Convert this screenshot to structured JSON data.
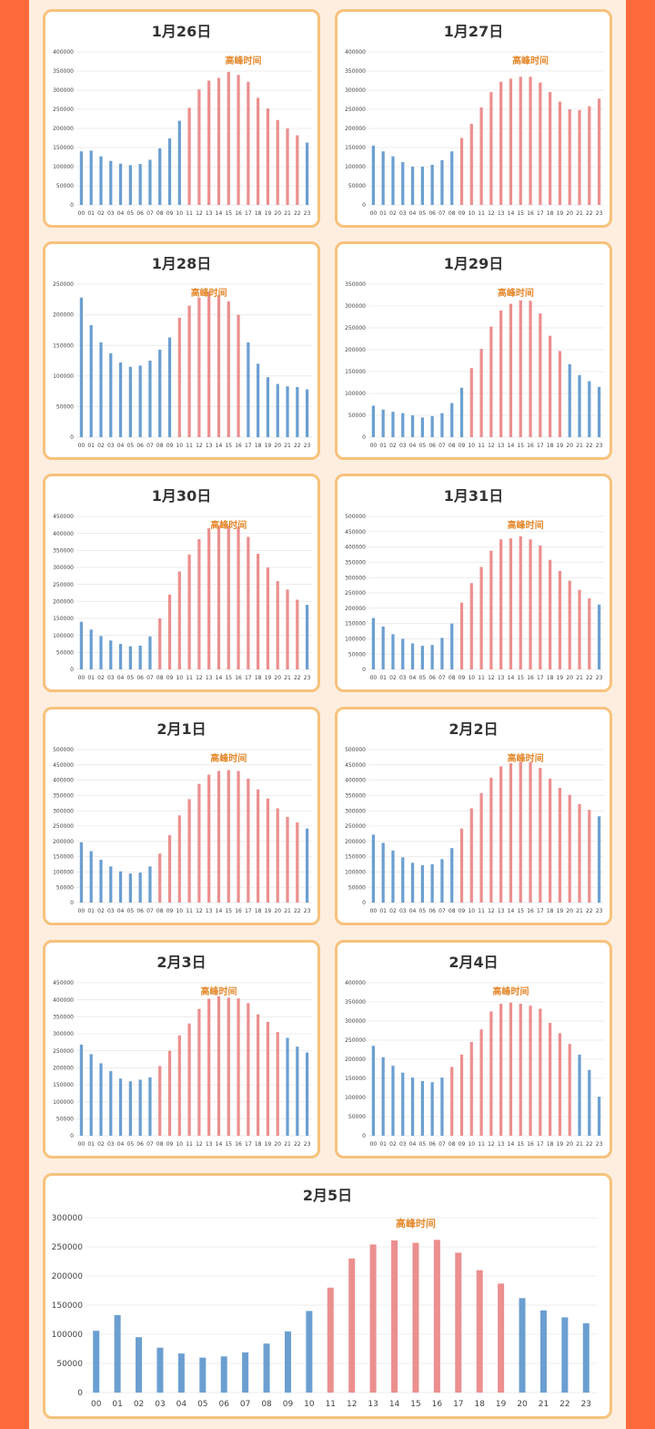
{
  "colors": {
    "background": "#ff6a3d",
    "panel": "#fdeee0",
    "card_border": "#f7c27c",
    "off_peak_bar": "#6b9fd1",
    "peak_bar": "#ec8f8f",
    "peak_label": "#e5892d",
    "title": "#333333",
    "axis_text": "#444444",
    "grid": "#ececec"
  },
  "peak_label": "高峰时间",
  "hours": [
    "00",
    "01",
    "02",
    "03",
    "04",
    "05",
    "06",
    "07",
    "08",
    "09",
    "10",
    "11",
    "12",
    "13",
    "14",
    "15",
    "16",
    "17",
    "18",
    "19",
    "20",
    "21",
    "22",
    "23"
  ],
  "chart_data": [
    {
      "type": "bar",
      "title": "1月26日",
      "ylim": [
        0,
        400000
      ],
      "yticks": [
        0,
        50000,
        100000,
        150000,
        200000,
        250000,
        300000,
        350000,
        400000
      ],
      "values": [
        140000,
        142000,
        127000,
        115000,
        108000,
        104000,
        107000,
        118000,
        148000,
        174000,
        220000,
        254000,
        302000,
        325000,
        332000,
        348000,
        340000,
        322000,
        280000,
        252000,
        222000,
        200000,
        182000,
        163000
      ],
      "peak": [
        11,
        22
      ]
    },
    {
      "type": "bar",
      "title": "1月27日",
      "ylim": [
        0,
        400000
      ],
      "yticks": [
        0,
        50000,
        100000,
        150000,
        200000,
        250000,
        300000,
        350000,
        400000
      ],
      "values": [
        155000,
        140000,
        127000,
        112000,
        100000,
        100000,
        105000,
        117000,
        140000,
        175000,
        212000,
        255000,
        295000,
        322000,
        330000,
        335000,
        335000,
        320000,
        295000,
        270000,
        250000,
        248000,
        258000,
        278000
      ],
      "peak": [
        9,
        23
      ]
    },
    {
      "type": "bar",
      "title": "1月28日",
      "ylim": [
        0,
        250000
      ],
      "yticks": [
        0,
        50000,
        100000,
        150000,
        200000,
        250000
      ],
      "values": [
        228000,
        183000,
        155000,
        137000,
        122000,
        115000,
        117000,
        125000,
        143000,
        163000,
        195000,
        215000,
        228000,
        238000,
        232000,
        222000,
        200000,
        155000,
        120000,
        98000,
        87000,
        83000,
        82000,
        78000
      ],
      "peak": [
        10,
        16
      ]
    },
    {
      "type": "bar",
      "title": "1月29日",
      "ylim": [
        0,
        350000
      ],
      "yticks": [
        0,
        50000,
        100000,
        150000,
        200000,
        250000,
        300000,
        350000
      ],
      "values": [
        72000,
        63000,
        58000,
        55000,
        50000,
        45000,
        48000,
        55000,
        78000,
        113000,
        158000,
        202000,
        253000,
        290000,
        305000,
        313000,
        312000,
        283000,
        232000,
        197000,
        167000,
        142000,
        128000,
        115000
      ],
      "peak": [
        10,
        19
      ]
    },
    {
      "type": "bar",
      "title": "1月30日",
      "ylim": [
        0,
        450000
      ],
      "yticks": [
        0,
        50000,
        100000,
        150000,
        200000,
        250000,
        300000,
        350000,
        400000,
        450000
      ],
      "values": [
        140000,
        117000,
        98000,
        85000,
        75000,
        68000,
        70000,
        97000,
        150000,
        220000,
        288000,
        338000,
        383000,
        415000,
        422000,
        423000,
        420000,
        390000,
        340000,
        300000,
        260000,
        235000,
        205000,
        190000
      ],
      "peak": [
        8,
        22
      ]
    },
    {
      "type": "bar",
      "title": "1月31日",
      "ylim": [
        0,
        500000
      ],
      "yticks": [
        0,
        50000,
        100000,
        150000,
        200000,
        250000,
        300000,
        350000,
        400000,
        450000,
        500000
      ],
      "values": [
        168000,
        140000,
        115000,
        100000,
        85000,
        77000,
        80000,
        103000,
        150000,
        218000,
        282000,
        335000,
        388000,
        425000,
        428000,
        435000,
        425000,
        405000,
        358000,
        322000,
        290000,
        260000,
        232000,
        212000
      ],
      "peak": [
        9,
        22
      ]
    },
    {
      "type": "bar",
      "title": "2月1日",
      "ylim": [
        0,
        500000
      ],
      "yticks": [
        0,
        50000,
        100000,
        150000,
        200000,
        250000,
        300000,
        350000,
        400000,
        450000,
        500000
      ],
      "values": [
        197000,
        168000,
        140000,
        118000,
        102000,
        95000,
        98000,
        118000,
        160000,
        220000,
        285000,
        338000,
        388000,
        418000,
        430000,
        433000,
        430000,
        405000,
        370000,
        340000,
        308000,
        280000,
        262000,
        242000
      ],
      "peak": [
        8,
        22
      ]
    },
    {
      "type": "bar",
      "title": "2月2日",
      "ylim": [
        0,
        500000
      ],
      "yticks": [
        0,
        50000,
        100000,
        150000,
        200000,
        250000,
        300000,
        350000,
        400000,
        450000,
        500000
      ],
      "values": [
        222000,
        195000,
        170000,
        148000,
        130000,
        122000,
        125000,
        142000,
        178000,
        242000,
        308000,
        358000,
        408000,
        445000,
        455000,
        460000,
        458000,
        440000,
        405000,
        375000,
        352000,
        322000,
        303000,
        282000
      ],
      "peak": [
        9,
        22
      ]
    },
    {
      "type": "bar",
      "title": "2月3日",
      "ylim": [
        0,
        450000
      ],
      "yticks": [
        0,
        50000,
        100000,
        150000,
        200000,
        250000,
        300000,
        350000,
        400000,
        450000
      ],
      "values": [
        268000,
        240000,
        213000,
        190000,
        168000,
        160000,
        165000,
        172000,
        205000,
        250000,
        295000,
        330000,
        373000,
        403000,
        410000,
        406000,
        404000,
        390000,
        357000,
        335000,
        305000,
        288000,
        262000,
        245000
      ],
      "peak": [
        8,
        20
      ]
    },
    {
      "type": "bar",
      "title": "2月4日",
      "ylim": [
        0,
        400000
      ],
      "yticks": [
        0,
        50000,
        100000,
        150000,
        200000,
        250000,
        300000,
        350000,
        400000
      ],
      "values": [
        235000,
        205000,
        183000,
        165000,
        152000,
        143000,
        140000,
        152000,
        180000,
        212000,
        245000,
        278000,
        325000,
        345000,
        348000,
        345000,
        340000,
        332000,
        295000,
        268000,
        240000,
        212000,
        172000,
        102000
      ],
      "peak": [
        8,
        20
      ]
    },
    {
      "type": "bar",
      "title": "2月5日",
      "ylim": [
        0,
        300000
      ],
      "yticks": [
        0,
        50000,
        100000,
        150000,
        200000,
        250000,
        300000
      ],
      "values": [
        106000,
        133000,
        95000,
        77000,
        67000,
        60000,
        62000,
        69000,
        84000,
        105000,
        140000,
        180000,
        230000,
        254000,
        261000,
        257000,
        262000,
        240000,
        210000,
        187000,
        162000,
        141000,
        129000,
        119000
      ],
      "peak": [
        11,
        19
      ]
    }
  ]
}
